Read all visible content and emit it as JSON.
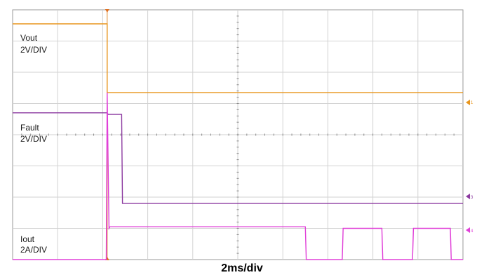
{
  "chart_data": {
    "type": "line",
    "title": "",
    "xlabel": "2ms/div",
    "ylabel": "",
    "grid": true,
    "divisions": {
      "x": 10,
      "y": 8
    },
    "xlim": [
      0,
      10
    ],
    "ylim": [
      0,
      8
    ],
    "trigger_div": 2.1,
    "channel_labels": [
      {
        "id": "vout",
        "name": "Vout",
        "scale": "2V/DIV"
      },
      {
        "id": "fault",
        "name": "Fault",
        "scale": "2V/DIV"
      },
      {
        "id": "iout",
        "name": "Iout",
        "scale": "2A/DIV"
      }
    ],
    "marker_labels": [
      "1",
      "3",
      "4"
    ],
    "series": [
      {
        "id": "vout",
        "color": "#e8961e",
        "x": [
          0,
          2.1,
          2.1,
          10
        ],
        "y": [
          7.55,
          7.55,
          5.35,
          5.35
        ]
      },
      {
        "id": "fault",
        "color": "#8c3aa0",
        "x": [
          0,
          2.1,
          2.12,
          2.42,
          2.44,
          10
        ],
        "y": [
          4.7,
          4.7,
          4.65,
          4.65,
          1.8,
          1.8
        ]
      },
      {
        "id": "iout",
        "color": "#e040d8",
        "x": [
          0,
          2.08,
          2.1,
          2.14,
          2.16,
          6.5,
          6.52,
          7.32,
          7.34,
          8.2,
          8.22,
          8.88,
          8.9,
          9.72,
          9.74,
          10
        ],
        "y": [
          0.0,
          0.0,
          5.35,
          1.0,
          1.05,
          1.05,
          0.0,
          0.0,
          1.0,
          1.0,
          0.0,
          0.0,
          1.0,
          1.0,
          0.0,
          0.0
        ]
      }
    ]
  }
}
